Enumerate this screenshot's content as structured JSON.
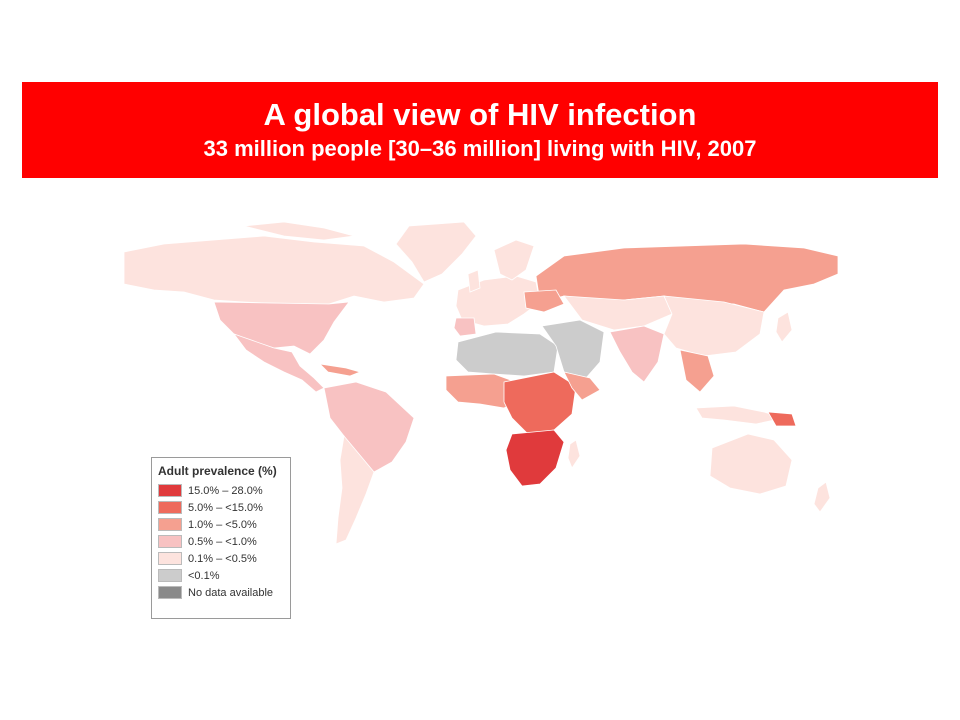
{
  "header": {
    "title": "A global view of HIV infection",
    "subtitle": "33 million people [30–36 million] living with HIV, 2007",
    "background_color": "#ff0000"
  },
  "legend": {
    "title": "Adult prevalence (%)",
    "items": [
      {
        "label": "15.0% – 28.0%",
        "color": "#e03a3c"
      },
      {
        "label": "5.0% – <15.0%",
        "color": "#ee6a5c"
      },
      {
        "label": "1.0% – <5.0%",
        "color": "#f5a090"
      },
      {
        "label": "0.5% – <1.0%",
        "color": "#f8c2c2"
      },
      {
        "label": "0.1% – <0.5%",
        "color": "#fde3de"
      },
      {
        "label": "<0.1%",
        "color": "#cccccc"
      },
      {
        "label": "No data available",
        "color": "#8a8a8a"
      }
    ]
  }
}
